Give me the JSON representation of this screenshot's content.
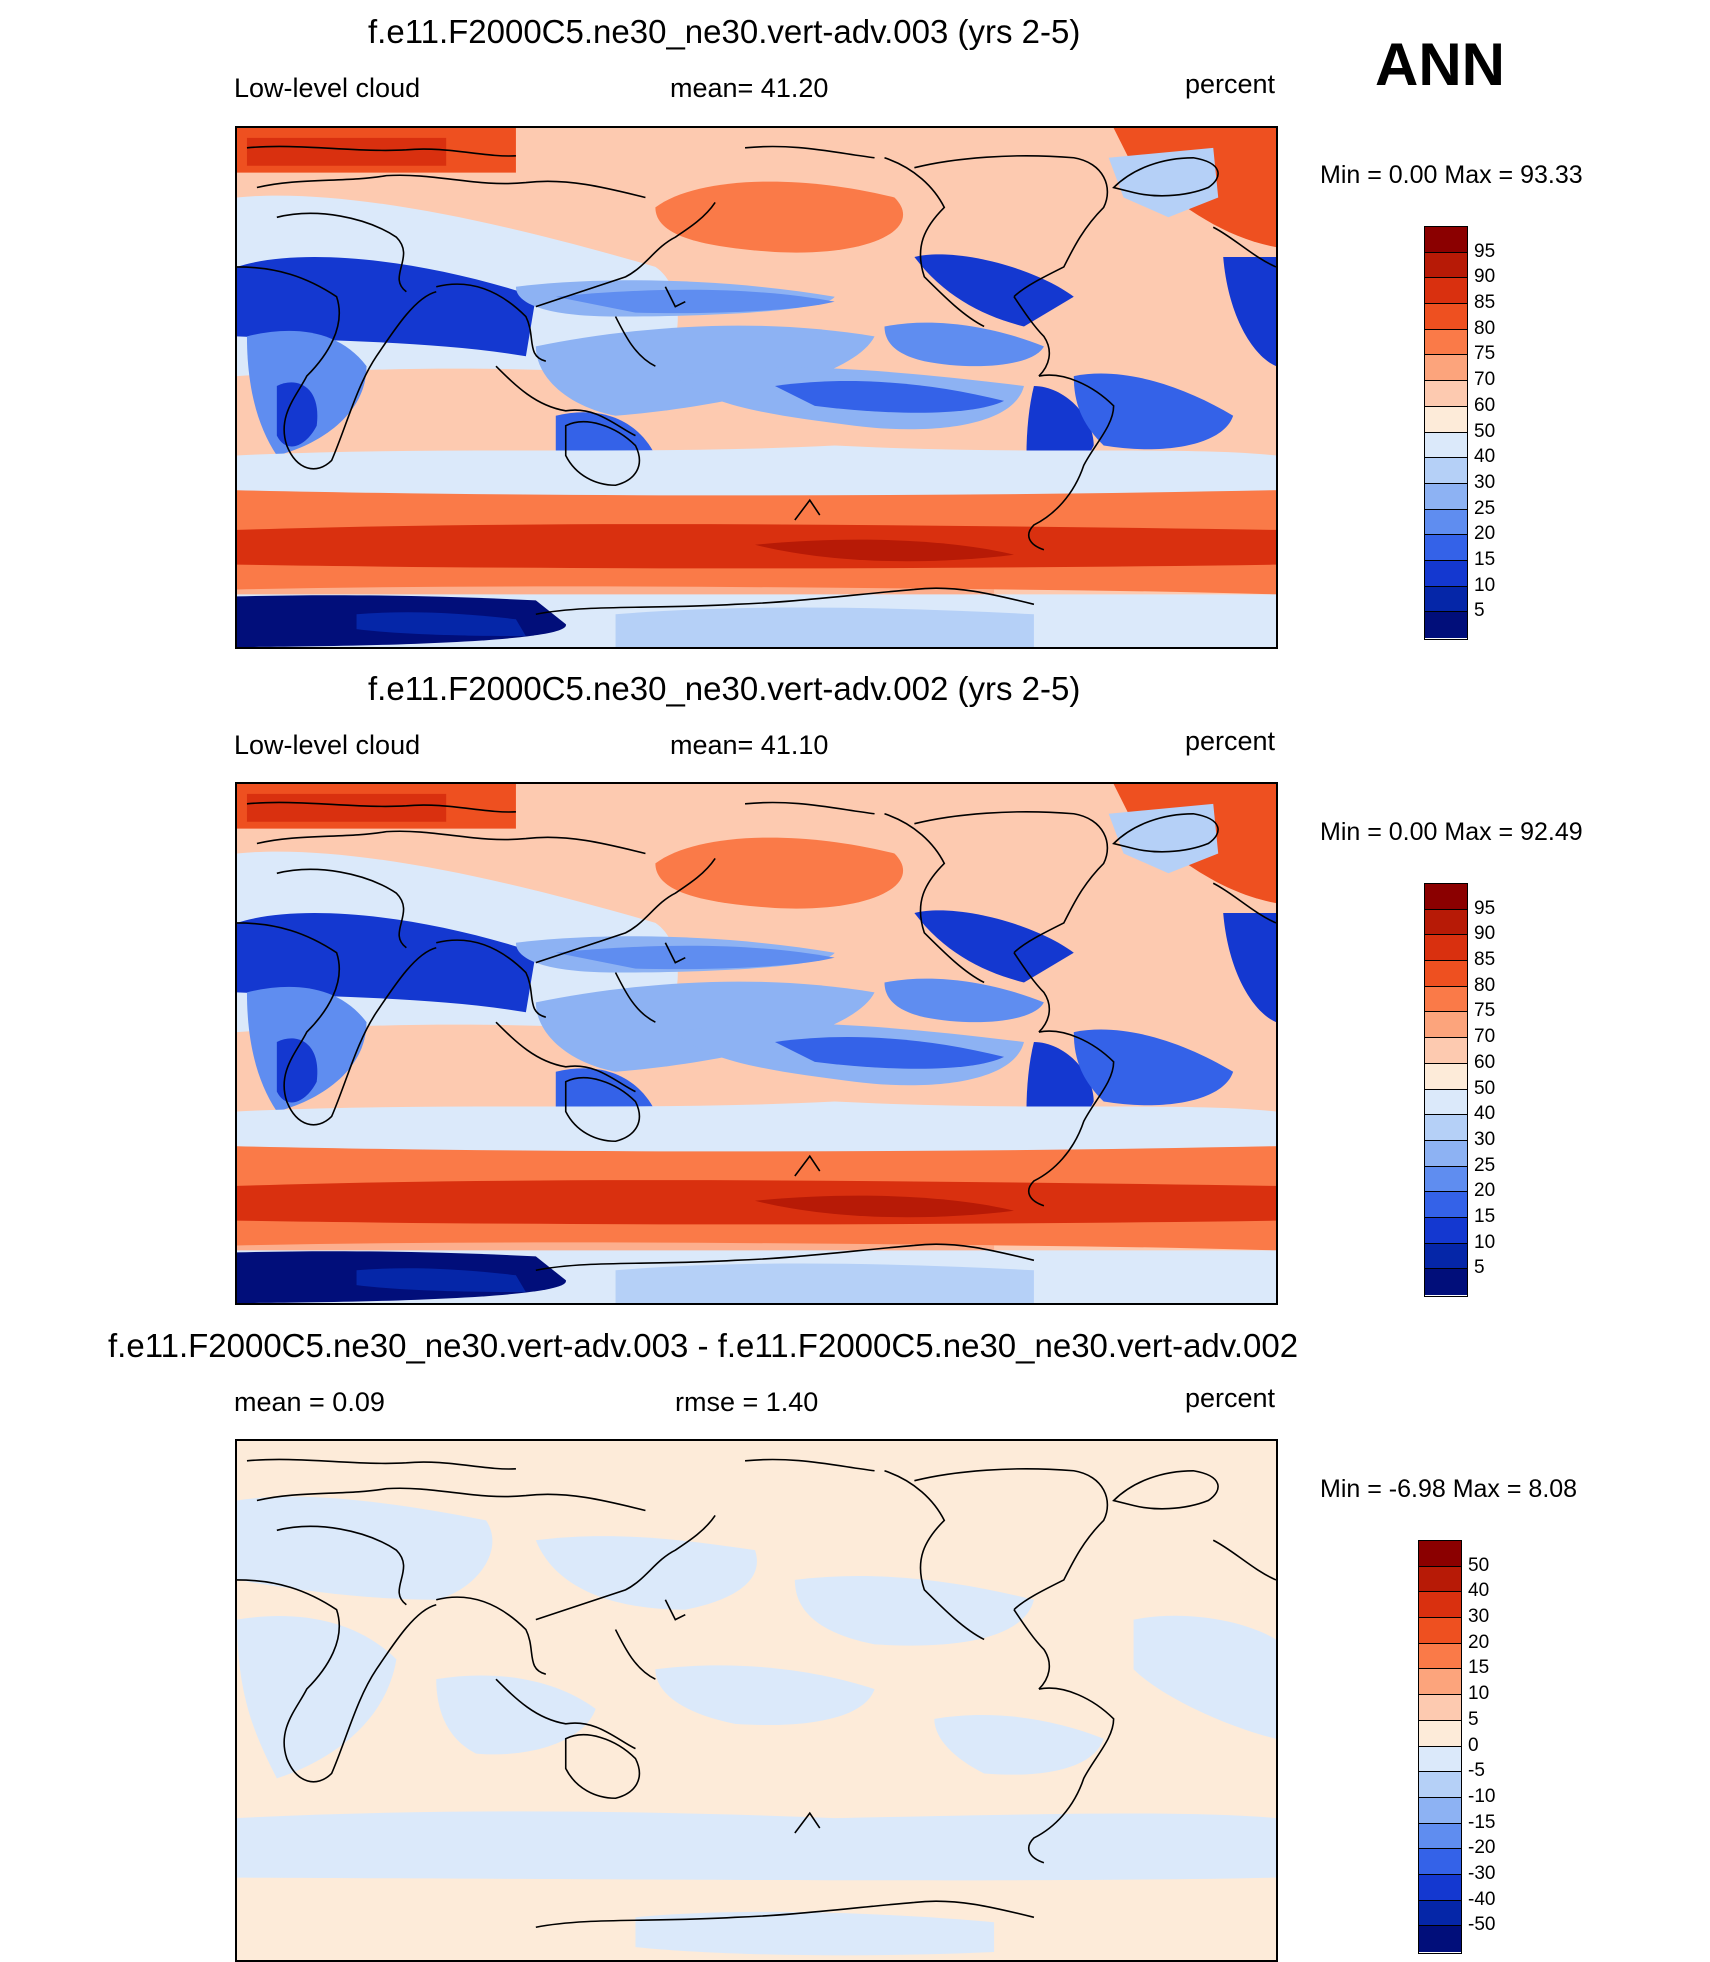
{
  "season": "ANN",
  "panels": [
    {
      "title": "f.e11.F2000C5.ne30_ne30.vert-adv.003 (yrs 2-5)",
      "left_label": "Low-level cloud",
      "center_label": "mean=  41.20",
      "right_label": "percent",
      "minmax": "Min =   0.00 Max =  93.33",
      "colorbar_labels": [
        "95",
        "90",
        "85",
        "80",
        "75",
        "70",
        "60",
        "50",
        "40",
        "30",
        "25",
        "20",
        "15",
        "10",
        "5"
      ],
      "colorbar_colors": [
        "#8b0000",
        "#b71a06",
        "#d9300f",
        "#ee5020",
        "#fa7a48",
        "#fca47c",
        "#fdcab0",
        "#fdebd9",
        "#dbe9fa",
        "#b5d0f7",
        "#8db2f3",
        "#5f8df0",
        "#3462e8",
        "#1438d0",
        "#0526a8",
        "#010e7a"
      ],
      "field": "A"
    },
    {
      "title": "f.e11.F2000C5.ne30_ne30.vert-adv.002 (yrs 2-5)",
      "left_label": "Low-level cloud",
      "center_label": "mean=  41.10",
      "right_label": "percent",
      "minmax": "Min =   0.00 Max =  92.49",
      "colorbar_labels": [
        "95",
        "90",
        "85",
        "80",
        "75",
        "70",
        "60",
        "50",
        "40",
        "30",
        "25",
        "20",
        "15",
        "10",
        "5"
      ],
      "colorbar_colors": [
        "#8b0000",
        "#b71a06",
        "#d9300f",
        "#ee5020",
        "#fa7a48",
        "#fca47c",
        "#fdcab0",
        "#fdebd9",
        "#dbe9fa",
        "#b5d0f7",
        "#8db2f3",
        "#5f8df0",
        "#3462e8",
        "#1438d0",
        "#0526a8",
        "#010e7a"
      ],
      "field": "A"
    },
    {
      "title": "f.e11.F2000C5.ne30_ne30.vert-adv.003 - f.e11.F2000C5.ne30_ne30.vert-adv.002",
      "left_label": "mean =   0.09",
      "center_label": "rmse =   1.40",
      "right_label": "percent",
      "minmax": "Min =  -6.98 Max =   8.08",
      "colorbar_labels": [
        "50",
        "40",
        "30",
        "20",
        "15",
        "10",
        "5",
        "0",
        "-5",
        "-10",
        "-15",
        "-20",
        "-30",
        "-40",
        "-50"
      ],
      "colorbar_colors": [
        "#8b0000",
        "#b71a06",
        "#d9300f",
        "#ee5020",
        "#fa7a48",
        "#fca47c",
        "#fdcab0",
        "#fdebd9",
        "#dbe9fa",
        "#b5d0f7",
        "#8db2f3",
        "#5f8df0",
        "#3462e8",
        "#1438d0",
        "#0526a8",
        "#010e7a"
      ],
      "field": "D"
    }
  ]
}
